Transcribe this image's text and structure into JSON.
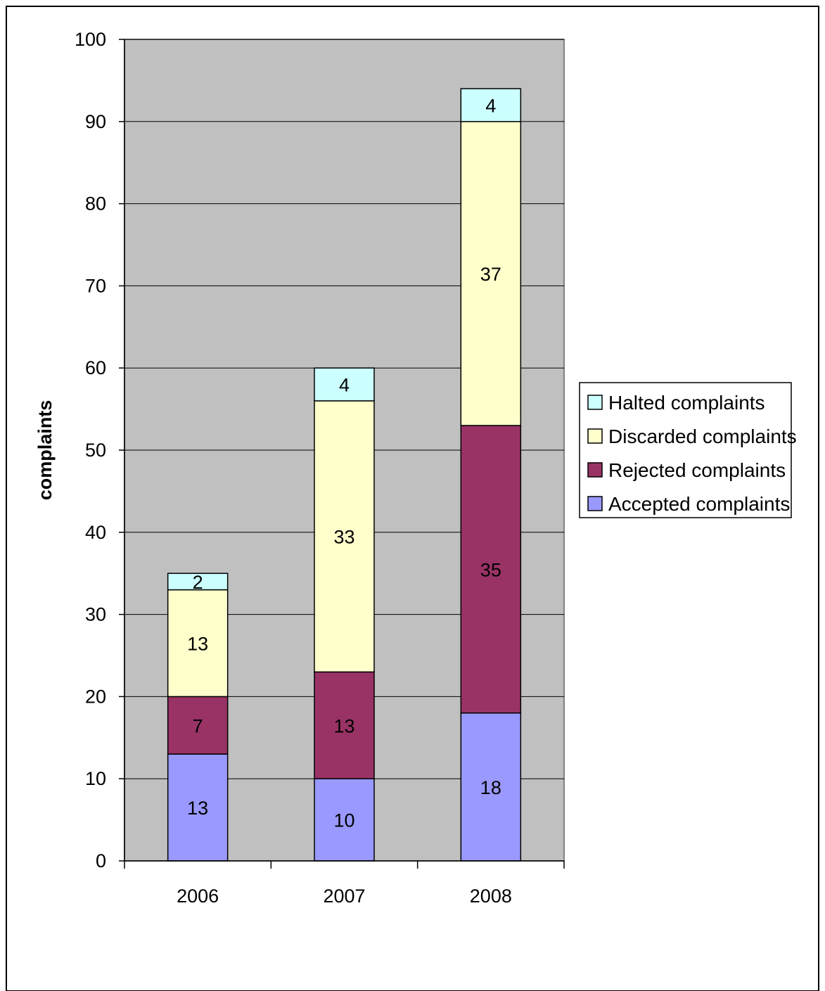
{
  "chart_data": {
    "type": "bar",
    "stacked": true,
    "categories": [
      "2006",
      "2007",
      "2008"
    ],
    "series": [
      {
        "name": "Accepted complaints",
        "values": [
          13,
          10,
          18
        ],
        "color": "#9999ff"
      },
      {
        "name": "Rejected complaints",
        "values": [
          7,
          13,
          35
        ],
        "color": "#993366"
      },
      {
        "name": "Discarded complaints",
        "values": [
          13,
          33,
          37
        ],
        "color": "#ffffcc"
      },
      {
        "name": "Halted complaints",
        "values": [
          2,
          4,
          4
        ],
        "color": "#ccffff"
      }
    ],
    "ylabel": "complaints",
    "ylim": [
      0,
      100
    ],
    "yticks": [
      0,
      10,
      20,
      30,
      40,
      50,
      60,
      70,
      80,
      90,
      100
    ],
    "grid": true,
    "legend": "right",
    "legend_order": [
      "Halted complaints",
      "Discarded complaints",
      "Rejected complaints",
      "Accepted complaints"
    ],
    "plot_background": "#c0c0c0"
  }
}
